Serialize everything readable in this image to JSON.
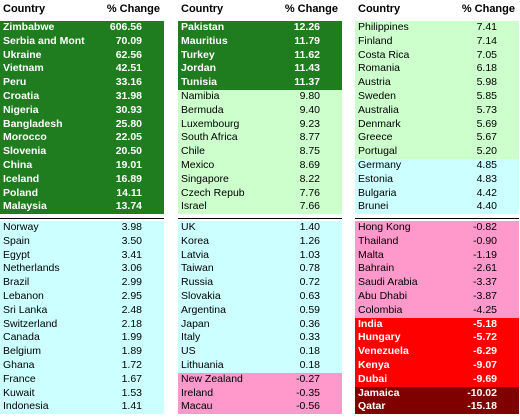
{
  "panels": [
    {
      "header": {
        "country": "Country",
        "change": "% Change"
      },
      "top": [
        {
          "color": "#1f7d1f",
          "text_color": "#ffffff",
          "rows": [
            {
              "country": "Zimbabwe",
              "change": "606.56"
            },
            {
              "country": "Serbia and Mont",
              "change": "70.09"
            },
            {
              "country": "Ukraine",
              "change": "62.56"
            },
            {
              "country": "Vietnam",
              "change": "42.51"
            },
            {
              "country": "Peru",
              "change": "33.16"
            },
            {
              "country": "Croatia",
              "change": "31.98"
            },
            {
              "country": "Nigeria",
              "change": "30.93"
            },
            {
              "country": "Bangladesh",
              "change": "25.80"
            },
            {
              "country": "Morocco",
              "change": "22.05"
            },
            {
              "country": "Slovenia",
              "change": "20.50"
            },
            {
              "country": "China",
              "change": "19.01"
            },
            {
              "country": "Iceland",
              "change": "16.89"
            },
            {
              "country": "Poland",
              "change": "14.11"
            },
            {
              "country": "Malaysia",
              "change": "13.74"
            }
          ]
        }
      ],
      "bottom": [
        {
          "color": "#ccffff",
          "text_color": "#000000",
          "rows": [
            {
              "country": "Norway",
              "change": "3.98"
            },
            {
              "country": "Spain",
              "change": "3.50"
            },
            {
              "country": "Egypt",
              "change": "3.41"
            },
            {
              "country": "Netherlands",
              "change": "3.06"
            },
            {
              "country": "Brazil",
              "change": "2.99"
            },
            {
              "country": "Lebanon",
              "change": "2.95"
            },
            {
              "country": "Sri Lanka",
              "change": "2.48"
            },
            {
              "country": "Switzerland",
              "change": "2.18"
            },
            {
              "country": "Canada",
              "change": "1.99"
            },
            {
              "country": "Belgium",
              "change": "1.89"
            },
            {
              "country": "Ghana",
              "change": "1.72"
            },
            {
              "country": "France",
              "change": "1.67"
            },
            {
              "country": "Kuwait",
              "change": "1.53"
            },
            {
              "country": "Indonesia",
              "change": "1.41"
            }
          ]
        }
      ]
    },
    {
      "header": {
        "country": "Country",
        "change": "% Change"
      },
      "top": [
        {
          "color": "#1f7d1f",
          "text_color": "#ffffff",
          "rows": [
            {
              "country": "Pakistan",
              "change": "12.26"
            },
            {
              "country": "Mauritius",
              "change": "11.79"
            },
            {
              "country": "Turkey",
              "change": "11.62"
            },
            {
              "country": "Jordan",
              "change": "11.43"
            },
            {
              "country": "Tunisia",
              "change": "11.37"
            }
          ]
        },
        {
          "color": "#ccffcc",
          "text_color": "#000000",
          "rows": [
            {
              "country": "Namibia",
              "change": "9.80"
            },
            {
              "country": "Bermuda",
              "change": "9.40"
            },
            {
              "country": "Luxembourg",
              "change": "9.23"
            },
            {
              "country": "South Africa",
              "change": "8.77"
            },
            {
              "country": "Chile",
              "change": "8.75"
            },
            {
              "country": "Mexico",
              "change": "8.69"
            },
            {
              "country": "Singapore",
              "change": "8.22"
            },
            {
              "country": "Czech Repub",
              "change": "7.76"
            },
            {
              "country": "Israel",
              "change": "7.66"
            }
          ]
        }
      ],
      "bottom": [
        {
          "color": "#ccffff",
          "text_color": "#000000",
          "rows": [
            {
              "country": "UK",
              "change": "1.40"
            },
            {
              "country": "Korea",
              "change": "1.26"
            },
            {
              "country": "Latvia",
              "change": "1.03"
            },
            {
              "country": "Taiwan",
              "change": "0.78"
            },
            {
              "country": "Russia",
              "change": "0.72"
            },
            {
              "country": "Slovakia",
              "change": "0.63"
            },
            {
              "country": "Argentina",
              "change": "0.59"
            },
            {
              "country": "Japan",
              "change": "0.36"
            },
            {
              "country": "Italy",
              "change": "0.33"
            },
            {
              "country": "US",
              "change": "0.18"
            },
            {
              "country": "Lithuania",
              "change": "0.18"
            }
          ]
        },
        {
          "color": "#ff99cc",
          "text_color": "#000000",
          "rows": [
            {
              "country": "New Zealand",
              "change": "-0.27"
            },
            {
              "country": "Ireland",
              "change": "-0.35"
            },
            {
              "country": "Macau",
              "change": "-0.56"
            }
          ]
        }
      ]
    },
    {
      "header": {
        "country": "Country",
        "change": "% Change"
      },
      "top": [
        {
          "color": "#ccffcc",
          "text_color": "#000000",
          "rows": [
            {
              "country": "Philippines",
              "change": "7.41"
            },
            {
              "country": "Finland",
              "change": "7.14"
            },
            {
              "country": "Costa Rica",
              "change": "7.05"
            },
            {
              "country": "Romania",
              "change": "6.18"
            },
            {
              "country": "Austria",
              "change": "5.98"
            },
            {
              "country": "Sweden",
              "change": "5.85"
            },
            {
              "country": "Australia",
              "change": "5.73"
            },
            {
              "country": "Denmark",
              "change": "5.69"
            },
            {
              "country": "Greece",
              "change": "5.67"
            },
            {
              "country": "Portugal",
              "change": "5.20"
            }
          ]
        },
        {
          "color": "#ccffff",
          "text_color": "#000000",
          "rows": [
            {
              "country": "Germany",
              "change": "4.85"
            },
            {
              "country": "Estonia",
              "change": "4.83"
            },
            {
              "country": "Bulgaria",
              "change": "4.42"
            },
            {
              "country": "Brunei",
              "change": "4.40"
            }
          ]
        }
      ],
      "bottom": [
        {
          "color": "#ff99cc",
          "text_color": "#000000",
          "rows": [
            {
              "country": "Hong Kong",
              "change": "-0.82"
            },
            {
              "country": "Thailand",
              "change": "-0.90"
            },
            {
              "country": "Malta",
              "change": "-1.19"
            },
            {
              "country": "Bahrain",
              "change": "-2.61"
            },
            {
              "country": "Saudi Arabia",
              "change": "-3.37"
            },
            {
              "country": "Abu Dhabi",
              "change": "-3.87"
            },
            {
              "country": "Colombia",
              "change": "-4.25"
            }
          ]
        },
        {
          "color": "#ff0000",
          "text_color": "#ffffff",
          "rows": [
            {
              "country": "India",
              "change": "-5.18"
            },
            {
              "country": "Hungary",
              "change": "-5.72"
            },
            {
              "country": "Venezuela",
              "change": "-6.29"
            },
            {
              "country": "Kenya",
              "change": "-9.07"
            },
            {
              "country": "Dubai",
              "change": "-9.69"
            }
          ]
        },
        {
          "color": "#800000",
          "text_color": "#ffffff",
          "rows": [
            {
              "country": "Jamaica",
              "change": "-10.02"
            },
            {
              "country": "Qatar",
              "change": "-15.18"
            }
          ]
        }
      ]
    }
  ]
}
